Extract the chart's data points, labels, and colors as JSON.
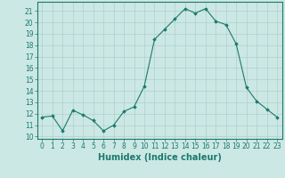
{
  "x": [
    0,
    1,
    2,
    3,
    4,
    5,
    6,
    7,
    8,
    9,
    10,
    11,
    12,
    13,
    14,
    15,
    16,
    17,
    18,
    19,
    20,
    21,
    22,
    23
  ],
  "y": [
    11.7,
    11.8,
    10.5,
    12.3,
    11.9,
    11.4,
    10.5,
    11.0,
    12.2,
    12.6,
    14.4,
    18.5,
    19.4,
    20.3,
    21.2,
    20.8,
    21.2,
    20.1,
    19.8,
    18.1,
    14.3,
    13.1,
    12.4,
    11.7
  ],
  "line_color": "#1a7a6e",
  "marker": "D",
  "marker_size": 1.8,
  "line_width": 0.8,
  "xlabel": "Humidex (Indice chaleur)",
  "xlabel_fontsize": 7,
  "ylabel_ticks": [
    10,
    11,
    12,
    13,
    14,
    15,
    16,
    17,
    18,
    19,
    20,
    21
  ],
  "xlim": [
    -0.5,
    23.5
  ],
  "ylim": [
    9.8,
    21.8
  ],
  "bg_color": "#cce8e4",
  "grid_color": "#b0cfcc",
  "tick_fontsize": 5.5
}
